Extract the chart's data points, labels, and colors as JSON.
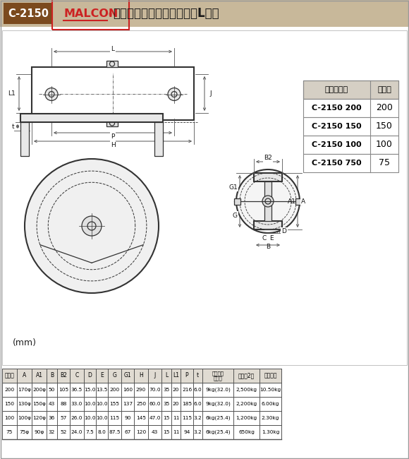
{
  "bg_color": "#ffffff",
  "header_bg": "#c8b89a",
  "code_box_bg": "#7b4a1e",
  "code_box_text": "#ffffff",
  "code_box_label": "C-2150",
  "malcon_color": "#cc2222",
  "title_text": "枠付トロッシャー重量車（L型）",
  "table_header": [
    "サイズ",
    "A",
    "A1",
    "B",
    "B2",
    "C",
    "D",
    "E",
    "G",
    "G1",
    "H",
    "J",
    "L",
    "L1",
    "P",
    "t",
    "適用軌条\nレール",
    "耐重量2ケ",
    "製品自重"
  ],
  "table_rows": [
    [
      "200",
      "170φ",
      "200φ",
      "50",
      "105",
      "36.5",
      "15.0",
      "13.5",
      "200",
      "160",
      "290",
      "70.0",
      "35",
      "20",
      "216",
      "6.0",
      "9kg(32.0)",
      "2,500kg",
      "10.50kg"
    ],
    [
      "150",
      "130φ",
      "150φ",
      "43",
      "88",
      "33.0",
      "10.0",
      "10.0",
      "155",
      "137",
      "250",
      "60.0",
      "35",
      "20",
      "185",
      "6.0",
      "9kg(32.0)",
      "2,200kg",
      "6.00kg"
    ],
    [
      "100",
      "100φ",
      "120φ",
      "36",
      "57",
      "26.0",
      "10.0",
      "10.0",
      "115",
      "90",
      "145",
      "47.0",
      "15",
      "11",
      "115",
      "3.2",
      "6kg(25.4)",
      "1,200kg",
      "2.30kg"
    ],
    [
      "75",
      "75φ",
      "90φ",
      "32",
      "52",
      "24.0",
      "7.5",
      "8.0",
      "87.5",
      "67",
      "120",
      "43",
      "15",
      "11",
      "94",
      "3.2",
      "6kg(25.4)",
      "650kg",
      "1.30kg"
    ]
  ],
  "code_table_headers": [
    "コード番号",
    "サイズ"
  ],
  "code_table_rows": [
    [
      "C-2150 200",
      "200"
    ],
    [
      "C-2150 150",
      "150"
    ],
    [
      "C-2150 100",
      "100"
    ],
    [
      "C-2150 750",
      "75"
    ]
  ],
  "unit_label": "(mm)"
}
